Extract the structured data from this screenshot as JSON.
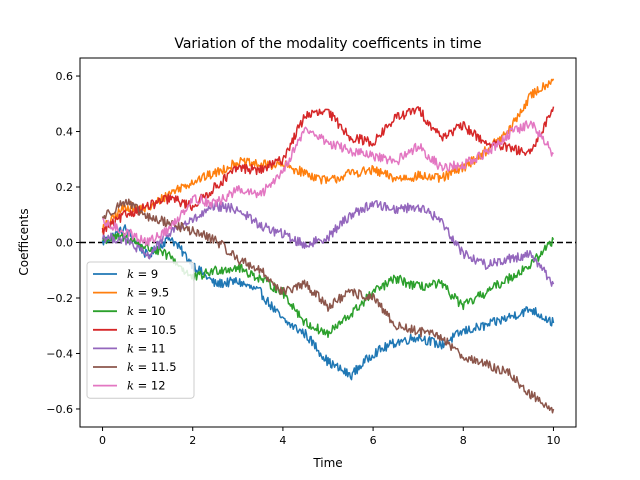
{
  "chart_data": {
    "type": "line",
    "title": "Variation of the modality coefficents in time",
    "xlabel": "Time",
    "ylabel": "Coefficents",
    "xlim": [
      -0.5,
      10.5
    ],
    "ylim": [
      -0.665,
      0.665
    ],
    "xticks": [
      0,
      2,
      4,
      6,
      8,
      10
    ],
    "yticks": [
      -0.6,
      -0.4,
      -0.2,
      0.0,
      0.2,
      0.4,
      0.6
    ],
    "ytick_labels": [
      "−0.6",
      "−0.4",
      "−0.2",
      "0.0",
      "0.2",
      "0.4",
      "0.6"
    ],
    "reference_line": {
      "y": 0,
      "style": "dashed",
      "color": "#000000"
    },
    "legend_position": "lower-left",
    "x": [
      0,
      0.5,
      1,
      1.5,
      2,
      2.5,
      3,
      3.5,
      4,
      4.5,
      5,
      5.5,
      6,
      6.5,
      7,
      7.5,
      8,
      8.5,
      9,
      9.5,
      10
    ],
    "series": [
      {
        "name": "9",
        "color": "#1f77b4",
        "values": [
          0.0,
          0.05,
          -0.05,
          0.02,
          -0.08,
          -0.15,
          -0.14,
          -0.18,
          -0.28,
          -0.33,
          -0.43,
          -0.48,
          -0.4,
          -0.36,
          -0.34,
          -0.37,
          -0.32,
          -0.3,
          -0.27,
          -0.24,
          -0.29
        ]
      },
      {
        "name": "9.5",
        "color": "#ff7f0e",
        "values": [
          0.05,
          0.13,
          0.12,
          0.18,
          0.22,
          0.25,
          0.29,
          0.28,
          0.28,
          0.25,
          0.22,
          0.25,
          0.26,
          0.23,
          0.24,
          0.23,
          0.27,
          0.33,
          0.4,
          0.53,
          0.59
        ]
      },
      {
        "name": "10",
        "color": "#2ca02c",
        "values": [
          0.01,
          0.02,
          -0.02,
          -0.05,
          -0.13,
          -0.1,
          -0.09,
          -0.13,
          -0.18,
          -0.29,
          -0.33,
          -0.26,
          -0.18,
          -0.13,
          -0.16,
          -0.15,
          -0.23,
          -0.18,
          -0.13,
          -0.08,
          0.01
        ]
      },
      {
        "name": "10.5",
        "color": "#d62728",
        "values": [
          0.04,
          0.1,
          0.13,
          0.16,
          0.13,
          0.2,
          0.27,
          0.26,
          0.3,
          0.46,
          0.47,
          0.38,
          0.36,
          0.45,
          0.48,
          0.38,
          0.42,
          0.36,
          0.34,
          0.32,
          0.49
        ]
      },
      {
        "name": "11",
        "color": "#9467bd",
        "values": [
          0.02,
          0.01,
          -0.05,
          0.04,
          0.08,
          0.13,
          0.12,
          0.06,
          0.03,
          -0.01,
          0.02,
          0.1,
          0.14,
          0.12,
          0.13,
          0.08,
          -0.04,
          -0.08,
          -0.06,
          -0.04,
          -0.15
        ]
      },
      {
        "name": "11.5",
        "color": "#8c564b",
        "values": [
          0.09,
          0.15,
          0.09,
          0.07,
          0.04,
          0.01,
          -0.06,
          -0.1,
          -0.18,
          -0.15,
          -0.23,
          -0.18,
          -0.2,
          -0.3,
          -0.32,
          -0.34,
          -0.41,
          -0.44,
          -0.47,
          -0.55,
          -0.6
        ]
      },
      {
        "name": "12",
        "color": "#e377c2",
        "values": [
          0.07,
          0.04,
          0.0,
          0.05,
          0.16,
          0.14,
          0.19,
          0.17,
          0.26,
          0.41,
          0.36,
          0.33,
          0.31,
          0.29,
          0.35,
          0.27,
          0.28,
          0.32,
          0.39,
          0.43,
          0.32
        ]
      }
    ]
  }
}
